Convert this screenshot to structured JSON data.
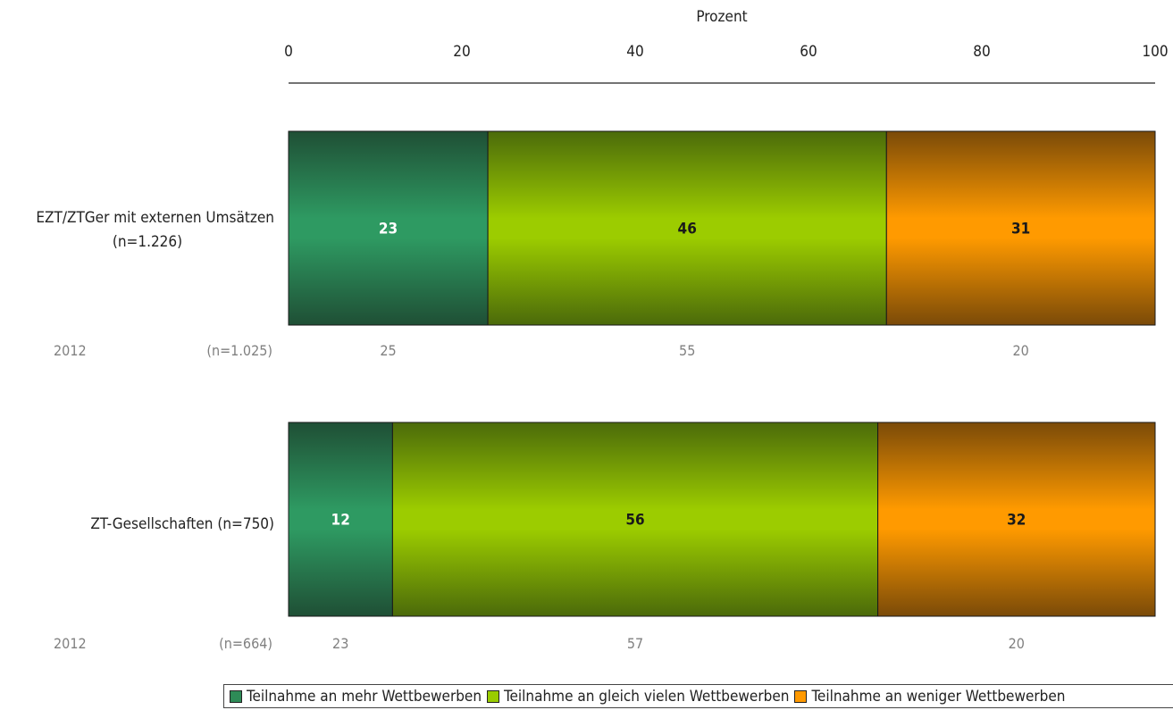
{
  "chart_data": {
    "type": "bar",
    "orientation": "horizontal",
    "stacked": true,
    "xlabel": "Prozent",
    "xlim": [
      0,
      100
    ],
    "x_ticks": [
      "0",
      "20",
      "40",
      "60",
      "80",
      "100"
    ],
    "categories": [
      "EZT/ZTGer mit externen Umsätzen",
      "ZT-Gesellschaften (n=750)"
    ],
    "category_sublabels": [
      "(n=1.226)",
      ""
    ],
    "series": [
      {
        "name": "Teilnahme an mehr Wettbewerben",
        "color": "#2e8b57",
        "values": [
          23,
          12
        ],
        "previous": [
          "25",
          "23"
        ]
      },
      {
        "name": "Teilnahme an gleich vielen Wettbewerben",
        "color": "#99cc00",
        "values": [
          46,
          56
        ],
        "previous": [
          "55",
          "57"
        ]
      },
      {
        "name": "Teilnahme an weniger Wettbewerben",
        "color": "#ff9900",
        "values": [
          31,
          32
        ],
        "previous": [
          "20",
          "20"
        ]
      }
    ],
    "comparison_rows": [
      {
        "year": "2012",
        "n": "(n=1.025)"
      },
      {
        "year": "2012",
        "n": "(n=664)"
      }
    ],
    "legend_position": "bottom"
  }
}
